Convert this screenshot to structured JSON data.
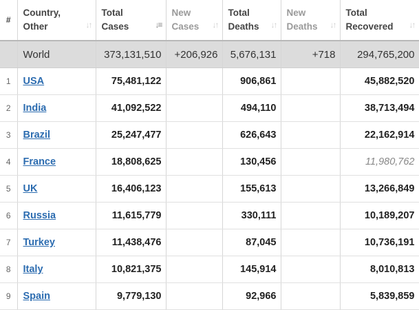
{
  "columns": [
    {
      "key": "num",
      "label": "#"
    },
    {
      "key": "country",
      "line1": "Country,",
      "line2": "Other"
    },
    {
      "key": "total_cases",
      "line1": "Total",
      "line2": "Cases"
    },
    {
      "key": "new_cases",
      "line1": "New",
      "line2": "Cases"
    },
    {
      "key": "total_deaths",
      "line1": "Total",
      "line2": "Deaths"
    },
    {
      "key": "new_deaths",
      "line1": "New",
      "line2": "Deaths"
    },
    {
      "key": "total_recovered",
      "line1": "Total",
      "line2": "Recovered"
    }
  ],
  "world": {
    "name": "World",
    "total_cases": "373,131,510",
    "new_cases": "+206,926",
    "total_deaths": "5,676,131",
    "new_deaths": "+718",
    "total_recovered": "294,765,200"
  },
  "rows": [
    {
      "num": "1",
      "country": "USA",
      "total_cases": "75,481,122",
      "new_cases": "",
      "total_deaths": "906,861",
      "new_deaths": "",
      "total_recovered": "45,882,520",
      "recovered_estimated": false
    },
    {
      "num": "2",
      "country": "India",
      "total_cases": "41,092,522",
      "new_cases": "",
      "total_deaths": "494,110",
      "new_deaths": "",
      "total_recovered": "38,713,494",
      "recovered_estimated": false
    },
    {
      "num": "3",
      "country": "Brazil",
      "total_cases": "25,247,477",
      "new_cases": "",
      "total_deaths": "626,643",
      "new_deaths": "",
      "total_recovered": "22,162,914",
      "recovered_estimated": false
    },
    {
      "num": "4",
      "country": "France",
      "total_cases": "18,808,625",
      "new_cases": "",
      "total_deaths": "130,456",
      "new_deaths": "",
      "total_recovered": "11,980,762",
      "recovered_estimated": true
    },
    {
      "num": "5",
      "country": "UK",
      "total_cases": "16,406,123",
      "new_cases": "",
      "total_deaths": "155,613",
      "new_deaths": "",
      "total_recovered": "13,266,849",
      "recovered_estimated": false
    },
    {
      "num": "6",
      "country": "Russia",
      "total_cases": "11,615,779",
      "new_cases": "",
      "total_deaths": "330,111",
      "new_deaths": "",
      "total_recovered": "10,189,207",
      "recovered_estimated": false
    },
    {
      "num": "7",
      "country": "Turkey",
      "total_cases": "11,438,476",
      "new_cases": "",
      "total_deaths": "87,045",
      "new_deaths": "",
      "total_recovered": "10,736,191",
      "recovered_estimated": false
    },
    {
      "num": "8",
      "country": "Italy",
      "total_cases": "10,821,375",
      "new_cases": "",
      "total_deaths": "145,914",
      "new_deaths": "",
      "total_recovered": "8,010,813",
      "recovered_estimated": false
    },
    {
      "num": "9",
      "country": "Spain",
      "total_cases": "9,779,130",
      "new_cases": "",
      "total_deaths": "92,966",
      "new_deaths": "",
      "total_recovered": "5,839,859",
      "recovered_estimated": false
    }
  ],
  "colors": {
    "link": "#2c6cb0",
    "world_row_bg": "#dcdcdc",
    "estimated_text": "#888888"
  },
  "sort": {
    "column": "total_cases",
    "direction": "descending"
  },
  "icons": {
    "sort_inactive": "sort-arrows-icon",
    "sort_active": "sort-desc-icon"
  }
}
